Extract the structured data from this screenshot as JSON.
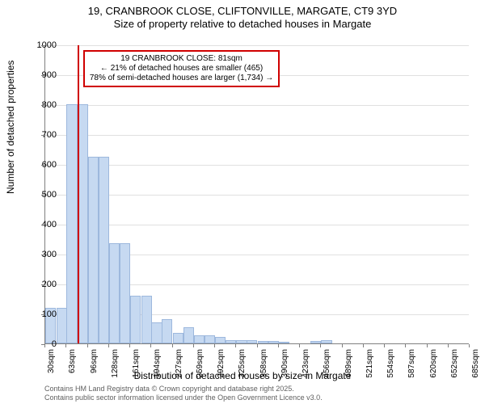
{
  "title": {
    "line1": "19, CRANBROOK CLOSE, CLIFTONVILLE, MARGATE, CT9 3YD",
    "line2": "Size of property relative to detached houses in Margate"
  },
  "chart": {
    "type": "histogram",
    "x_label": "Distribution of detached houses by size in Margate",
    "y_label": "Number of detached properties",
    "ylim": [
      0,
      1000
    ],
    "ytick_step": 100,
    "background_color": "#ffffff",
    "grid_color": "#e0e0e0",
    "axis_color": "#808080",
    "bar_fill": "#c6d9f1",
    "bar_stroke": "#9db8dd",
    "vline_color": "#d00000",
    "callout_border": "#d00000",
    "x_ticks": [
      "30sqm",
      "63sqm",
      "96sqm",
      "128sqm",
      "161sqm",
      "194sqm",
      "227sqm",
      "259sqm",
      "292sqm",
      "325sqm",
      "358sqm",
      "390sqm",
      "423sqm",
      "456sqm",
      "489sqm",
      "521sqm",
      "554sqm",
      "587sqm",
      "620sqm",
      "652sqm",
      "685sqm"
    ],
    "bars": [
      {
        "x": 30,
        "count": 120
      },
      {
        "x": 47,
        "count": 120
      },
      {
        "x": 63,
        "count": 800
      },
      {
        "x": 80,
        "count": 800
      },
      {
        "x": 96,
        "count": 625
      },
      {
        "x": 112,
        "count": 625
      },
      {
        "x": 128,
        "count": 335
      },
      {
        "x": 145,
        "count": 335
      },
      {
        "x": 161,
        "count": 160
      },
      {
        "x": 178,
        "count": 160
      },
      {
        "x": 194,
        "count": 70
      },
      {
        "x": 210,
        "count": 80
      },
      {
        "x": 227,
        "count": 35
      },
      {
        "x": 243,
        "count": 55
      },
      {
        "x": 259,
        "count": 28
      },
      {
        "x": 276,
        "count": 28
      },
      {
        "x": 292,
        "count": 22
      },
      {
        "x": 308,
        "count": 12
      },
      {
        "x": 325,
        "count": 12
      },
      {
        "x": 341,
        "count": 12
      },
      {
        "x": 358,
        "count": 8
      },
      {
        "x": 374,
        "count": 8
      },
      {
        "x": 390,
        "count": 6
      },
      {
        "x": 407,
        "count": 0
      },
      {
        "x": 423,
        "count": 0
      },
      {
        "x": 439,
        "count": 8
      },
      {
        "x": 456,
        "count": 12
      },
      {
        "x": 472,
        "count": 0
      },
      {
        "x": 489,
        "count": 0
      },
      {
        "x": 505,
        "count": 0
      },
      {
        "x": 521,
        "count": 0
      },
      {
        "x": 538,
        "count": 0
      },
      {
        "x": 554,
        "count": 0
      },
      {
        "x": 570,
        "count": 0
      },
      {
        "x": 587,
        "count": 0
      },
      {
        "x": 603,
        "count": 0
      },
      {
        "x": 620,
        "count": 0
      },
      {
        "x": 636,
        "count": 0
      },
      {
        "x": 652,
        "count": 0
      },
      {
        "x": 669,
        "count": 0
      }
    ],
    "x_min": 30,
    "x_max": 685,
    "bin_width": 16.375,
    "vline_x": 81,
    "callout": {
      "line1": "19 CRANBROOK CLOSE: 81sqm",
      "line2": "← 21% of detached houses are smaller (465)",
      "line3": "78% of semi-detached houses are larger (1,734) →"
    }
  },
  "footnotes": {
    "line1": "Contains HM Land Registry data © Crown copyright and database right 2025.",
    "line2": "Contains public sector information licensed under the Open Government Licence v3.0."
  }
}
